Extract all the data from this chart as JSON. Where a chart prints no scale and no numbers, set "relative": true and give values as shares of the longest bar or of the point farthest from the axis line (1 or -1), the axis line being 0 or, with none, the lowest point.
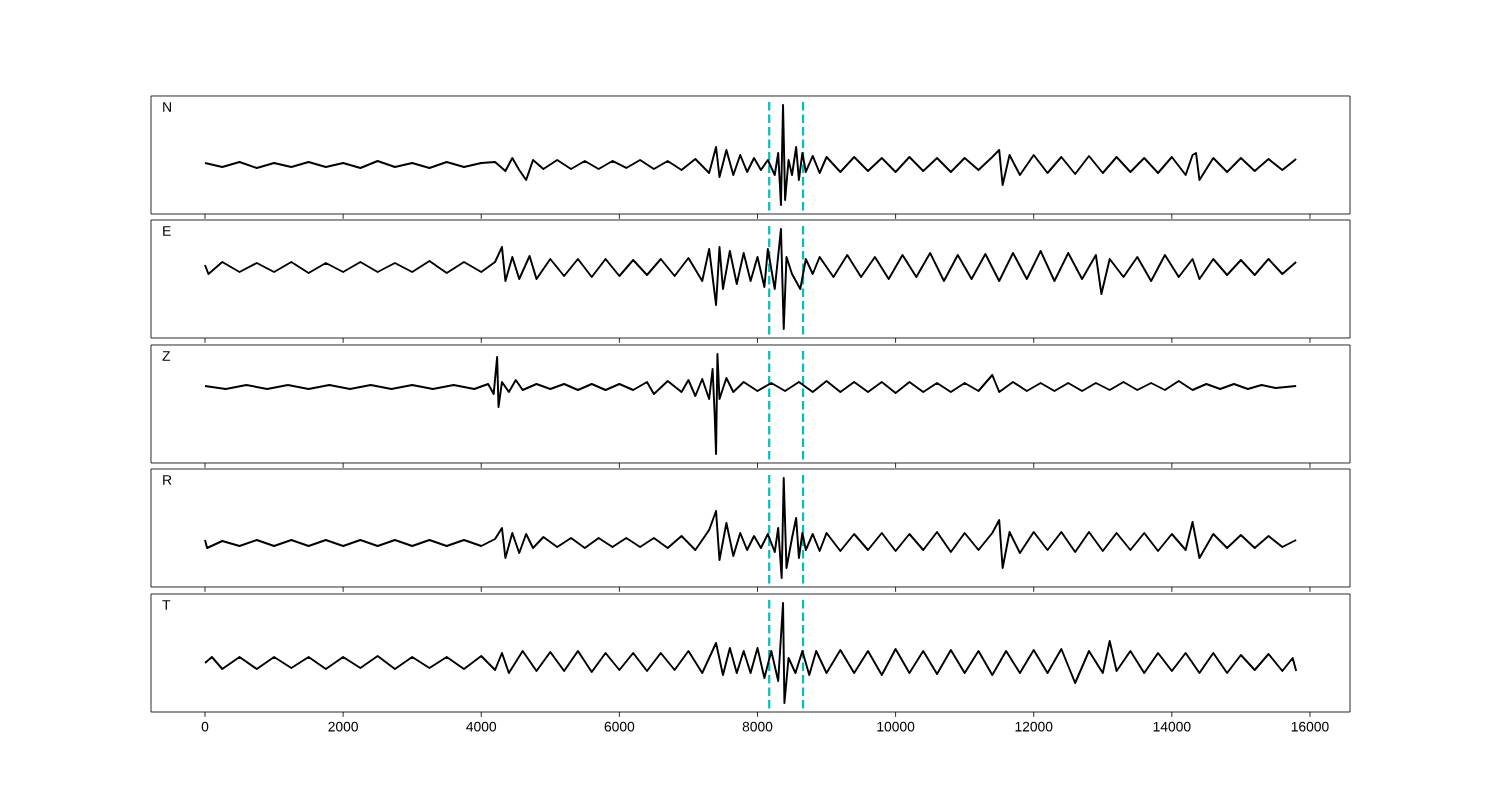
{
  "chart_data": [
    {
      "type": "line",
      "relative": true,
      "annotations": [
        "N"
      ],
      "color": "#000000",
      "marker": "none",
      "line_style": "solid",
      "grid": false,
      "tick_labels": false,
      "xlim": [
        -782,
        16580
      ],
      "xticks": [
        0,
        2000,
        4000,
        6000,
        8000,
        10000,
        12000,
        14000,
        16000
      ],
      "ref_lines": [
        {
          "axis": "x",
          "value": 8170,
          "color": "#00bfbf",
          "line_style": "dashed"
        },
        {
          "axis": "x",
          "value": 8660,
          "color": "#00bfbf",
          "line_style": "dashed"
        }
      ],
      "x": [
        0,
        250,
        500,
        750,
        1000,
        1250,
        1500,
        1750,
        2000,
        2250,
        2500,
        2750,
        3000,
        3250,
        3500,
        3750,
        4000,
        4200,
        4350,
        4450,
        4550,
        4650,
        4750,
        4900,
        5100,
        5300,
        5500,
        5700,
        5900,
        6100,
        6300,
        6500,
        6700,
        6900,
        7100,
        7300,
        7400,
        7450,
        7550,
        7650,
        7750,
        7850,
        7950,
        8050,
        8150,
        8250,
        8300,
        8340,
        8370,
        8400,
        8450,
        8500,
        8560,
        8600,
        8650,
        8700,
        8800,
        8900,
        9000,
        9200,
        9400,
        9600,
        9800,
        10000,
        10200,
        10400,
        10600,
        10800,
        11000,
        11200,
        11400,
        11500,
        11550,
        11650,
        11800,
        12000,
        12200,
        12400,
        12600,
        12800,
        13000,
        13200,
        13400,
        13600,
        13800,
        14000,
        14200,
        14300,
        14350,
        14400,
        14600,
        14800,
        15000,
        15200,
        15400,
        15600,
        15800
      ],
      "values": [
        0.42,
        0.38,
        0.43,
        0.37,
        0.42,
        0.38,
        0.43,
        0.38,
        0.42,
        0.37,
        0.44,
        0.38,
        0.42,
        0.37,
        0.43,
        0.38,
        0.42,
        0.43,
        0.34,
        0.47,
        0.35,
        0.25,
        0.45,
        0.36,
        0.45,
        0.36,
        0.44,
        0.36,
        0.44,
        0.37,
        0.45,
        0.36,
        0.44,
        0.35,
        0.46,
        0.32,
        0.58,
        0.28,
        0.55,
        0.3,
        0.5,
        0.33,
        0.47,
        0.35,
        0.45,
        0.3,
        0.52,
        0.0,
        1.0,
        0.05,
        0.45,
        0.3,
        0.58,
        0.25,
        0.52,
        0.33,
        0.49,
        0.32,
        0.48,
        0.33,
        0.48,
        0.34,
        0.47,
        0.33,
        0.48,
        0.34,
        0.47,
        0.33,
        0.47,
        0.35,
        0.48,
        0.55,
        0.2,
        0.5,
        0.3,
        0.5,
        0.32,
        0.48,
        0.31,
        0.49,
        0.32,
        0.48,
        0.33,
        0.47,
        0.32,
        0.48,
        0.3,
        0.5,
        0.52,
        0.25,
        0.47,
        0.33,
        0.47,
        0.34,
        0.46,
        0.35,
        0.46
      ]
    },
    {
      "type": "line",
      "relative": true,
      "annotations": [
        "E"
      ],
      "color": "#000000",
      "marker": "none",
      "line_style": "solid",
      "grid": false,
      "tick_labels": false,
      "xlim": [
        -782,
        16580
      ],
      "xticks": [
        0,
        2000,
        4000,
        6000,
        8000,
        10000,
        12000,
        14000,
        16000
      ],
      "ref_lines": [
        {
          "axis": "x",
          "value": 8170,
          "color": "#00bfbf",
          "line_style": "dashed"
        },
        {
          "axis": "x",
          "value": 8660,
          "color": "#00bfbf",
          "line_style": "dashed"
        }
      ],
      "x": [
        0,
        50,
        250,
        500,
        750,
        1000,
        1250,
        1500,
        1750,
        2000,
        2250,
        2500,
        2750,
        3000,
        3250,
        3500,
        3750,
        4000,
        4200,
        4300,
        4350,
        4450,
        4550,
        4700,
        4800,
        5000,
        5200,
        5400,
        5600,
        5800,
        6000,
        6200,
        6400,
        6600,
        6800,
        7000,
        7200,
        7300,
        7400,
        7450,
        7500,
        7600,
        7700,
        7800,
        7900,
        8000,
        8100,
        8150,
        8250,
        8340,
        8380,
        8420,
        8500,
        8620,
        8700,
        8800,
        8900,
        9100,
        9300,
        9500,
        9700,
        9900,
        10100,
        10300,
        10500,
        10700,
        10900,
        11100,
        11300,
        11500,
        11700,
        11900,
        12100,
        12300,
        12500,
        12700,
        12900,
        12980,
        13100,
        13300,
        13500,
        13700,
        13900,
        14100,
        14300,
        14400,
        14600,
        14800,
        15000,
        15200,
        15400,
        15600,
        15800
      ],
      "values": [
        0.64,
        0.55,
        0.67,
        0.57,
        0.66,
        0.57,
        0.67,
        0.56,
        0.66,
        0.57,
        0.67,
        0.57,
        0.66,
        0.57,
        0.68,
        0.56,
        0.67,
        0.57,
        0.67,
        0.82,
        0.48,
        0.72,
        0.5,
        0.73,
        0.5,
        0.7,
        0.53,
        0.7,
        0.52,
        0.7,
        0.53,
        0.69,
        0.54,
        0.7,
        0.53,
        0.71,
        0.48,
        0.8,
        0.24,
        0.82,
        0.4,
        0.78,
        0.45,
        0.76,
        0.48,
        0.72,
        0.42,
        0.8,
        0.4,
        1.0,
        0.0,
        0.72,
        0.55,
        0.4,
        0.7,
        0.55,
        0.72,
        0.52,
        0.74,
        0.52,
        0.72,
        0.5,
        0.74,
        0.52,
        0.76,
        0.48,
        0.74,
        0.5,
        0.75,
        0.48,
        0.76,
        0.5,
        0.78,
        0.48,
        0.76,
        0.5,
        0.74,
        0.35,
        0.7,
        0.52,
        0.72,
        0.48,
        0.74,
        0.52,
        0.7,
        0.5,
        0.7,
        0.54,
        0.69,
        0.54,
        0.7,
        0.55,
        0.67
      ]
    },
    {
      "type": "line",
      "relative": true,
      "annotations": [
        "Z"
      ],
      "color": "#000000",
      "marker": "none",
      "line_style": "solid",
      "grid": false,
      "tick_labels": false,
      "xlim": [
        -782,
        16580
      ],
      "xticks": [
        0,
        2000,
        4000,
        6000,
        8000,
        10000,
        12000,
        14000,
        16000
      ],
      "ref_lines": [
        {
          "axis": "x",
          "value": 8170,
          "color": "#00bfbf",
          "line_style": "dashed"
        },
        {
          "axis": "x",
          "value": 8660,
          "color": "#00bfbf",
          "line_style": "dashed"
        }
      ],
      "x": [
        0,
        300,
        600,
        900,
        1200,
        1500,
        1800,
        2100,
        2400,
        2700,
        3000,
        3300,
        3600,
        3900,
        4100,
        4180,
        4230,
        4250,
        4300,
        4400,
        4500,
        4600,
        4800,
        5000,
        5200,
        5400,
        5600,
        5800,
        6000,
        6200,
        6400,
        6500,
        6700,
        6900,
        7000,
        7100,
        7200,
        7300,
        7350,
        7380,
        7400,
        7420,
        7450,
        7550,
        7650,
        7800,
        8000,
        8200,
        8400,
        8600,
        8800,
        9000,
        9200,
        9400,
        9600,
        9800,
        10000,
        10200,
        10400,
        10600,
        10800,
        11000,
        11200,
        11400,
        11500,
        11700,
        11900,
        12100,
        12300,
        12500,
        12700,
        12900,
        13100,
        13300,
        13500,
        13700,
        13900,
        14100,
        14300,
        14500,
        14700,
        14900,
        15100,
        15300,
        15500,
        15800
      ],
      "values": [
        0.68,
        0.65,
        0.69,
        0.65,
        0.69,
        0.65,
        0.69,
        0.65,
        0.69,
        0.65,
        0.69,
        0.65,
        0.69,
        0.65,
        0.7,
        0.6,
        0.97,
        0.47,
        0.72,
        0.62,
        0.74,
        0.64,
        0.7,
        0.65,
        0.7,
        0.64,
        0.7,
        0.64,
        0.7,
        0.64,
        0.72,
        0.6,
        0.73,
        0.62,
        0.74,
        0.58,
        0.75,
        0.55,
        0.85,
        0.4,
        0.0,
        1.0,
        0.55,
        0.76,
        0.62,
        0.72,
        0.63,
        0.71,
        0.63,
        0.72,
        0.62,
        0.73,
        0.62,
        0.72,
        0.62,
        0.72,
        0.61,
        0.72,
        0.62,
        0.71,
        0.62,
        0.71,
        0.63,
        0.79,
        0.62,
        0.72,
        0.63,
        0.71,
        0.63,
        0.71,
        0.63,
        0.71,
        0.64,
        0.72,
        0.64,
        0.71,
        0.64,
        0.73,
        0.64,
        0.7,
        0.65,
        0.7,
        0.65,
        0.69,
        0.66,
        0.68
      ]
    },
    {
      "type": "line",
      "relative": true,
      "annotations": [
        "R"
      ],
      "color": "#000000",
      "marker": "none",
      "line_style": "solid",
      "grid": false,
      "tick_labels": false,
      "xlim": [
        -782,
        16580
      ],
      "xticks": [
        0,
        2000,
        4000,
        6000,
        8000,
        10000,
        12000,
        14000,
        16000
      ],
      "ref_lines": [
        {
          "axis": "x",
          "value": 8170,
          "color": "#00bfbf",
          "line_style": "dashed"
        },
        {
          "axis": "x",
          "value": 8660,
          "color": "#00bfbf",
          "line_style": "dashed"
        }
      ],
      "x": [
        0,
        30,
        250,
        500,
        750,
        1000,
        1250,
        1500,
        1750,
        2000,
        2250,
        2500,
        2750,
        3000,
        3250,
        3500,
        3750,
        4000,
        4200,
        4300,
        4350,
        4450,
        4550,
        4650,
        4750,
        4900,
        5100,
        5300,
        5500,
        5700,
        5900,
        6100,
        6300,
        6500,
        6700,
        6900,
        7100,
        7300,
        7400,
        7450,
        7550,
        7650,
        7750,
        7850,
        7950,
        8050,
        8150,
        8250,
        8300,
        8350,
        8380,
        8420,
        8500,
        8560,
        8600,
        8650,
        8700,
        8800,
        8900,
        9000,
        9200,
        9400,
        9600,
        9800,
        10000,
        10200,
        10400,
        10600,
        10800,
        11000,
        11200,
        11400,
        11500,
        11550,
        11650,
        11800,
        12000,
        12200,
        12400,
        12600,
        12800,
        13000,
        13200,
        13400,
        13600,
        13800,
        14000,
        14200,
        14300,
        14400,
        14600,
        14800,
        15000,
        15200,
        15400,
        15600,
        15800
      ],
      "values": [
        0.38,
        0.3,
        0.37,
        0.32,
        0.38,
        0.32,
        0.38,
        0.32,
        0.38,
        0.32,
        0.38,
        0.32,
        0.38,
        0.32,
        0.38,
        0.32,
        0.38,
        0.32,
        0.39,
        0.5,
        0.2,
        0.45,
        0.25,
        0.44,
        0.3,
        0.41,
        0.31,
        0.4,
        0.3,
        0.4,
        0.31,
        0.4,
        0.31,
        0.4,
        0.3,
        0.42,
        0.28,
        0.48,
        0.67,
        0.18,
        0.55,
        0.22,
        0.45,
        0.28,
        0.42,
        0.3,
        0.44,
        0.26,
        0.5,
        0.0,
        1.0,
        0.1,
        0.4,
        0.6,
        0.2,
        0.45,
        0.28,
        0.44,
        0.27,
        0.45,
        0.27,
        0.44,
        0.28,
        0.45,
        0.27,
        0.44,
        0.28,
        0.46,
        0.26,
        0.45,
        0.28,
        0.45,
        0.58,
        0.1,
        0.46,
        0.25,
        0.46,
        0.28,
        0.46,
        0.26,
        0.46,
        0.27,
        0.45,
        0.28,
        0.45,
        0.27,
        0.44,
        0.28,
        0.56,
        0.2,
        0.44,
        0.3,
        0.43,
        0.3,
        0.42,
        0.31,
        0.38
      ]
    },
    {
      "type": "line",
      "relative": true,
      "annotations": [
        "T"
      ],
      "color": "#000000",
      "marker": "none",
      "line_style": "solid",
      "grid": false,
      "tick_labels": "x",
      "xlim": [
        -782,
        16580
      ],
      "xticks": [
        0,
        2000,
        4000,
        6000,
        8000,
        10000,
        12000,
        14000,
        16000
      ],
      "ref_lines": [
        {
          "axis": "x",
          "value": 8170,
          "color": "#00bfbf",
          "line_style": "dashed"
        },
        {
          "axis": "x",
          "value": 8660,
          "color": "#00bfbf",
          "line_style": "dashed"
        }
      ],
      "x": [
        0,
        100,
        250,
        500,
        750,
        1000,
        1250,
        1500,
        1750,
        2000,
        2250,
        2500,
        2750,
        3000,
        3250,
        3500,
        3750,
        4000,
        4200,
        4300,
        4400,
        4600,
        4800,
        5000,
        5200,
        5400,
        5600,
        5800,
        6000,
        6200,
        6400,
        6600,
        6800,
        7000,
        7200,
        7400,
        7500,
        7600,
        7700,
        7800,
        7900,
        8000,
        8100,
        8200,
        8300,
        8370,
        8390,
        8450,
        8550,
        8650,
        8750,
        8850,
        9000,
        9200,
        9400,
        9600,
        9800,
        10000,
        10200,
        10400,
        10600,
        10800,
        11000,
        11200,
        11400,
        11600,
        11800,
        12000,
        12200,
        12400,
        12600,
        12800,
        13000,
        13100,
        13200,
        13400,
        13600,
        13800,
        14000,
        14200,
        14400,
        14600,
        14800,
        15000,
        15200,
        15400,
        15600,
        15750,
        15800
      ],
      "values": [
        0.4,
        0.46,
        0.34,
        0.46,
        0.34,
        0.46,
        0.35,
        0.46,
        0.34,
        0.46,
        0.35,
        0.47,
        0.34,
        0.46,
        0.35,
        0.46,
        0.34,
        0.47,
        0.33,
        0.5,
        0.3,
        0.52,
        0.32,
        0.51,
        0.32,
        0.52,
        0.31,
        0.5,
        0.33,
        0.5,
        0.32,
        0.5,
        0.33,
        0.52,
        0.3,
        0.6,
        0.28,
        0.55,
        0.3,
        0.52,
        0.3,
        0.55,
        0.25,
        0.52,
        0.22,
        1.0,
        0.0,
        0.45,
        0.3,
        0.52,
        0.28,
        0.52,
        0.3,
        0.53,
        0.3,
        0.52,
        0.28,
        0.54,
        0.3,
        0.52,
        0.29,
        0.53,
        0.3,
        0.52,
        0.28,
        0.52,
        0.3,
        0.53,
        0.3,
        0.54,
        0.2,
        0.52,
        0.3,
        0.62,
        0.32,
        0.52,
        0.3,
        0.5,
        0.32,
        0.5,
        0.3,
        0.5,
        0.3,
        0.48,
        0.33,
        0.49,
        0.32,
        0.45,
        0.32
      ]
    }
  ]
}
